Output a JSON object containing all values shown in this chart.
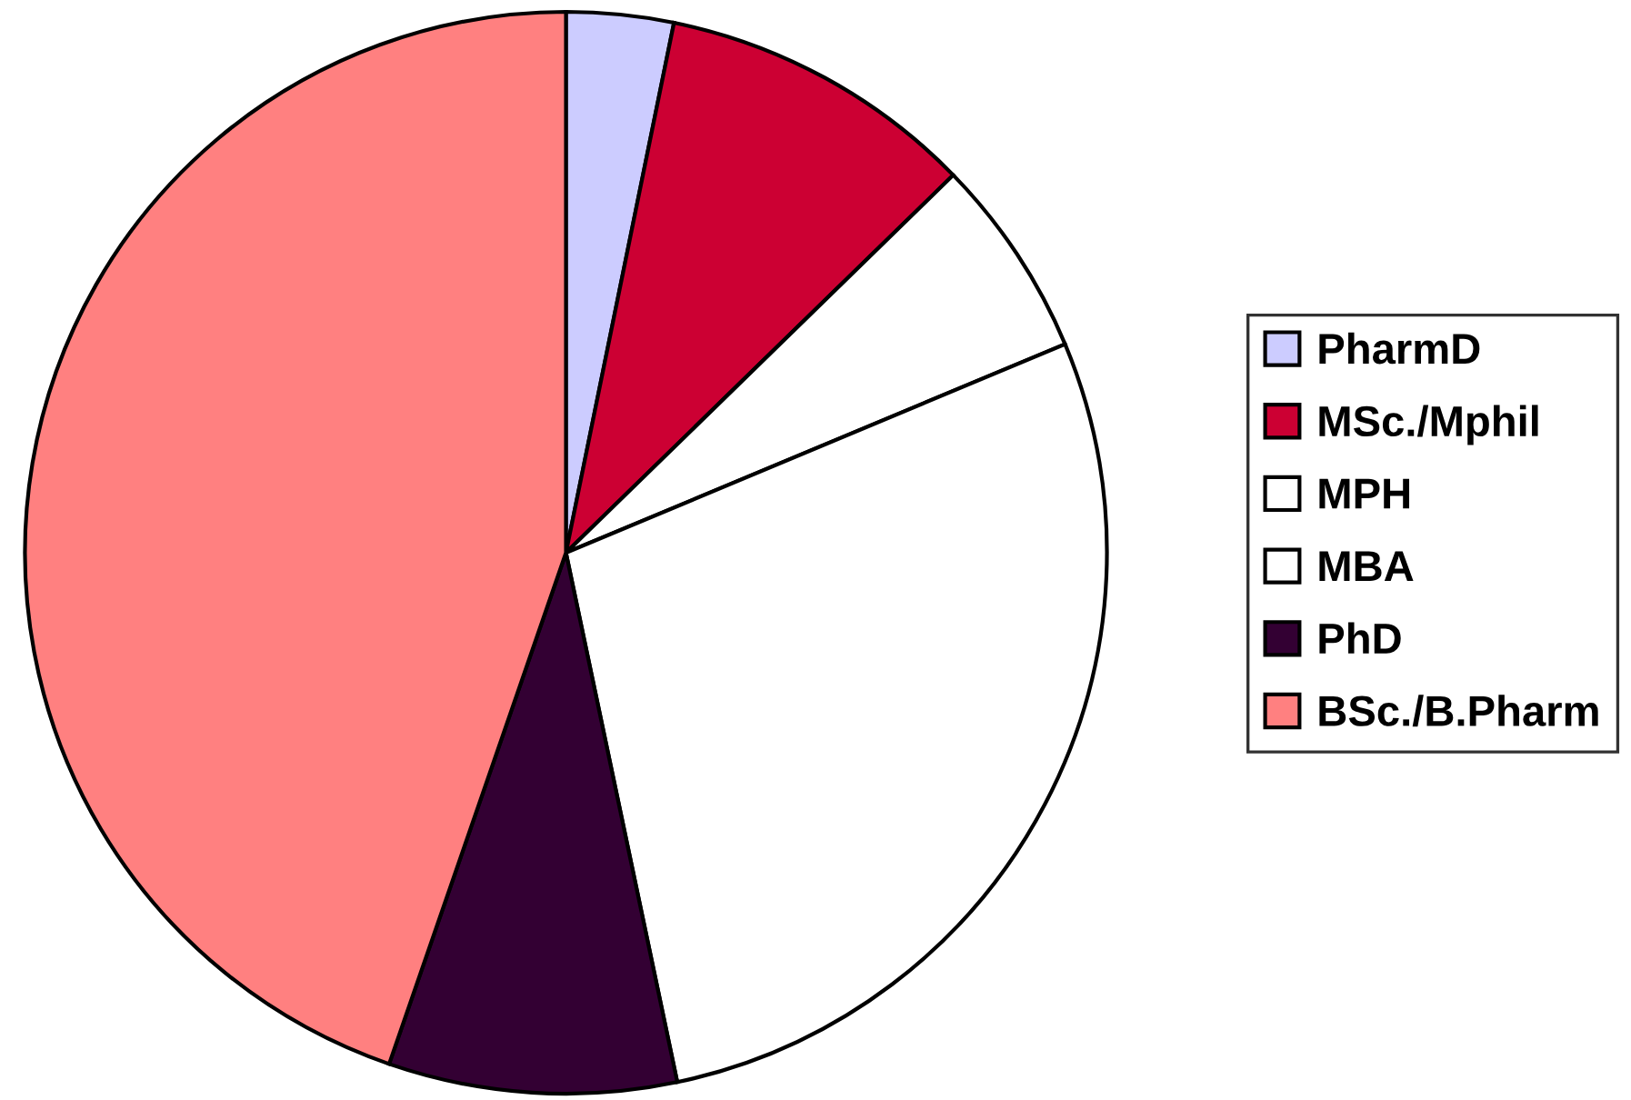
{
  "chart_data": {
    "type": "pie",
    "categories": [
      "PharmD",
      "MSc./Mphil",
      "MPH",
      "MBA",
      "PhD",
      "BSc./B.Pharm"
    ],
    "values": [
      3.2,
      9.5,
      6.0,
      28.0,
      8.6,
      44.7
    ],
    "colors": [
      "#ccccff",
      "#cc0033",
      "#ffffff",
      "#ffffff",
      "#330033",
      "#ff8080"
    ],
    "legend": "right"
  }
}
